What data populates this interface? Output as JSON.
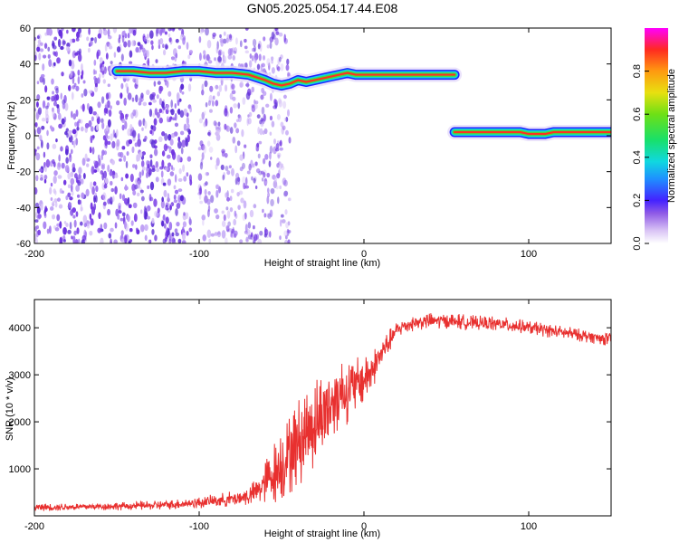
{
  "figure": {
    "title": "GN05.2025.054.17.44.E08"
  },
  "chart_data": [
    {
      "type": "heatmap",
      "title": "",
      "xlabel": "Height of straight line (km)",
      "ylabel": "Frequency (Hz)",
      "xlim": [
        -200,
        150
      ],
      "ylim": [
        -60,
        60
      ],
      "xticks": [
        -200,
        -100,
        0,
        100
      ],
      "yticks": [
        60,
        40,
        20,
        0,
        -20,
        -40,
        -60
      ],
      "grid": false,
      "noise_region_x": [
        -200,
        -55
      ],
      "noise_gap_x": [
        -105,
        -100
      ],
      "ridge": {
        "x": [
          -150,
          -140,
          -130,
          -120,
          -110,
          -100,
          -90,
          -80,
          -70,
          -60,
          -55,
          -50,
          -45,
          -40,
          -35,
          -30,
          -25,
          -20,
          -15,
          -10,
          -5,
          0,
          10,
          20,
          30,
          40,
          50,
          55
        ],
        "y": [
          36,
          36,
          35,
          35,
          36,
          36,
          35,
          35,
          34,
          31,
          29,
          28,
          29,
          31,
          30,
          31,
          32,
          33,
          34,
          35,
          34,
          34,
          34,
          34,
          34,
          34,
          34,
          34
        ]
      },
      "aliased_ridge": {
        "x": [
          55,
          60,
          70,
          80,
          90,
          95,
          100,
          105,
          110,
          115,
          120,
          130,
          140,
          150
        ],
        "y": [
          2,
          2,
          2,
          2,
          2,
          2,
          1,
          1,
          1,
          2,
          2,
          2,
          2,
          2
        ]
      },
      "colorbar": {
        "label": "Normalized spectral amplitude",
        "range": [
          0,
          1
        ],
        "ticks": [
          "0.0",
          "0.2",
          "0.4",
          "0.6",
          "0.8"
        ]
      }
    },
    {
      "type": "line",
      "title": "",
      "xlabel": "Height of straight line (km)",
      "ylabel": "SNR (10 * v/v)",
      "xlim": [
        -200,
        150
      ],
      "ylim": [
        0,
        4600
      ],
      "xticks": [
        -200,
        -100,
        0,
        100
      ],
      "yticks": [
        1000,
        2000,
        3000,
        4000
      ],
      "grid": false,
      "color": "#e8302f",
      "series": [
        {
          "x": [
            -200,
            -180,
            -160,
            -140,
            -120,
            -110,
            -100,
            -90,
            -80,
            -70,
            -65,
            -60,
            -55,
            -50,
            -45,
            -40,
            -35,
            -30,
            -25,
            -20,
            -15,
            -10,
            -5,
            0,
            5,
            10,
            15,
            20,
            25,
            30,
            40,
            50,
            60,
            70,
            80,
            90,
            100,
            110,
            120,
            130,
            140,
            150
          ],
          "y": [
            180,
            190,
            200,
            210,
            230,
            260,
            280,
            320,
            360,
            420,
            520,
            700,
            900,
            1100,
            1350,
            1550,
            1800,
            2000,
            2200,
            2400,
            2600,
            2650,
            2750,
            2900,
            3100,
            3400,
            3700,
            3950,
            4050,
            4100,
            4150,
            4150,
            4120,
            4100,
            4080,
            4050,
            4000,
            3950,
            3900,
            3850,
            3800,
            3750
          ],
          "spread": [
            80,
            80,
            80,
            90,
            100,
            110,
            120,
            150,
            170,
            200,
            300,
            450,
            650,
            800,
            900,
            950,
            1000,
            1000,
            900,
            900,
            800,
            700,
            600,
            550,
            450,
            350,
            250,
            200,
            180,
            170,
            170,
            170,
            170,
            160,
            160,
            160,
            150,
            150,
            150,
            140,
            140,
            140
          ]
        }
      ]
    }
  ]
}
